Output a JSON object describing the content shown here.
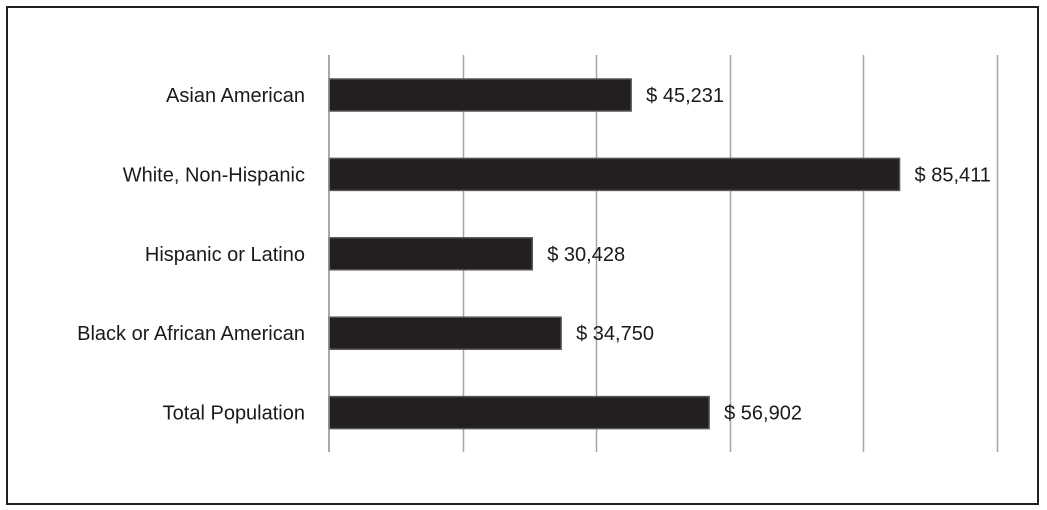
{
  "chart_data": {
    "type": "bar",
    "orientation": "horizontal",
    "categories": [
      "Asian American",
      "White, Non-Hispanic",
      "Hispanic or Latino",
      "Black or African American",
      "Total Population"
    ],
    "values": [
      45231,
      85411,
      30428,
      34750,
      56902
    ],
    "value_labels": [
      "$ 45,231",
      "$ 85,411",
      "$ 30,428",
      "$ 34,750",
      "$ 56,902"
    ],
    "title": "",
    "xlabel": "",
    "ylabel": "",
    "xlim": [
      0,
      100000
    ],
    "grid": true,
    "legend": "none",
    "colors": {
      "bar_fill": "#231f20",
      "bar_stroke": "#555555",
      "grid": "#a6a6a6",
      "axis": "#8c8c8c"
    }
  }
}
